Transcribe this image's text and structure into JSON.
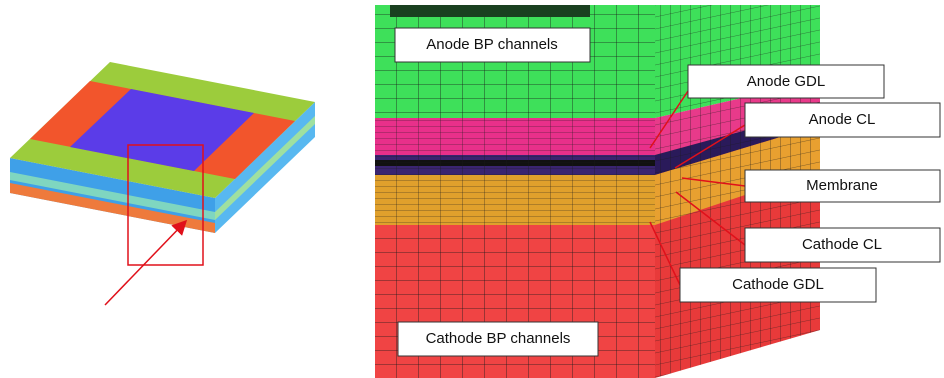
{
  "labels": [
    "Anode BP channels",
    "Anode GDL",
    "Anode CL",
    "Membrane",
    "Cathode CL",
    "Cathode GDL",
    "Cathode BP channels"
  ]
}
